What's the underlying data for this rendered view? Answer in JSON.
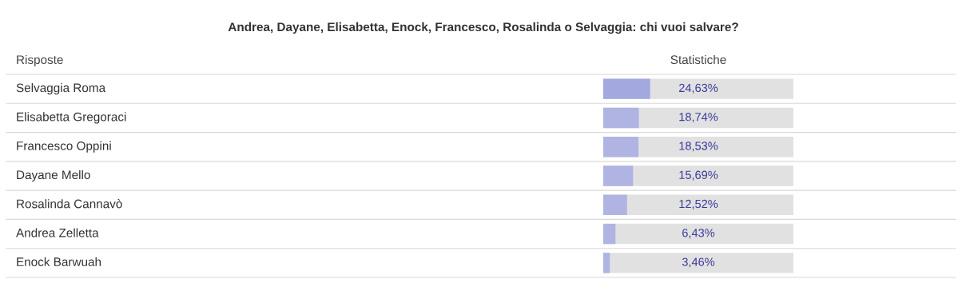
{
  "chart_data": {
    "type": "bar",
    "orientation": "horizontal",
    "title": "Andrea, Dayane, Elisabetta, Enock, Francesco, Rosalinda o Selvaggia: chi vuoi salvare?",
    "ylabel": "Risposte",
    "xlabel": "Statistiche",
    "categories": [
      "Selvaggia Roma",
      "Elisabetta Gregoraci",
      "Francesco Oppini",
      "Dayane Mello",
      "Rosalinda Cannavò",
      "Andrea Zelletta",
      "Enock Barwuah"
    ],
    "values": [
      24.63,
      18.74,
      18.53,
      15.69,
      12.52,
      6.43,
      3.46
    ],
    "value_labels": [
      "24,63%",
      "18,74%",
      "18,53%",
      "15,69%",
      "12,52%",
      "6,43%",
      "3,46%"
    ],
    "colors": [
      "#a3a8de",
      "#b0b4e3",
      "#b0b4e3",
      "#b0b4e3",
      "#b0b4e3",
      "#b0b4e3",
      "#b0b4e3"
    ],
    "xlim": [
      0,
      100
    ]
  }
}
